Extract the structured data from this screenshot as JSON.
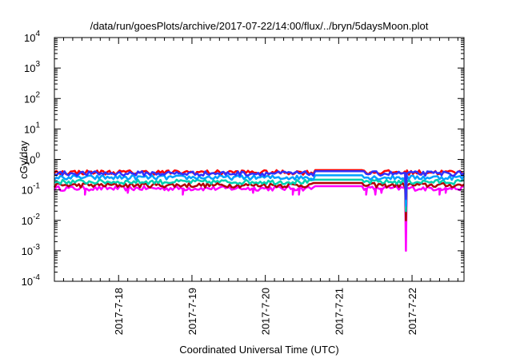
{
  "chart_data": {
    "type": "line",
    "title": "/data/run/goesPlots/archive/2017-07-22/14:00/flux/../bryn/5daysMoon.plot",
    "xlabel": "Coordinated Universal Time (UTC)",
    "ylabel": "cGy/day",
    "yscale": "log",
    "ylim": [
      0.0001,
      10000
    ],
    "ytick_labels": [
      {
        "base": "10",
        "exp": "-4"
      },
      {
        "base": "10",
        "exp": "-3"
      },
      {
        "base": "10",
        "exp": "-2"
      },
      {
        "base": "10",
        "exp": "-1"
      },
      {
        "base": "10",
        "exp": "0"
      },
      {
        "base": "10",
        "exp": "1"
      },
      {
        "base": "10",
        "exp": "2"
      },
      {
        "base": "10",
        "exp": "3"
      },
      {
        "base": "10",
        "exp": "4"
      }
    ],
    "xlim": [
      "2017-07-17 03:00",
      "2017-07-22 17:00"
    ],
    "xtick_labels": [
      "2017-7-18",
      "2017-7-19",
      "2017-7-20",
      "2017-7-21",
      "2017-7-22"
    ],
    "grid": false,
    "legend": "none",
    "series": [
      {
        "color": "#ff00ff",
        "base": 0.11,
        "dips": [
          {
            "x": "2017-07-17 13:00",
            "y": 0.07
          },
          {
            "x": "2017-07-18 03:00",
            "y": 0.08
          },
          {
            "x": "2017-07-18 21:00",
            "y": 0.07
          },
          {
            "x": "2017-07-19 20:00",
            "y": 0.08
          },
          {
            "x": "2017-07-20 09:00",
            "y": 0.07
          },
          {
            "x": "2017-07-20 11:00",
            "y": 0.07
          },
          {
            "x": "2017-07-21 09:00",
            "y": 0.07
          },
          {
            "x": "2017-07-21 12:00",
            "y": 0.07
          },
          {
            "x": "2017-07-21 14:00",
            "y": 0.08
          },
          {
            "x": "2017-07-21 22:00",
            "y": 0.001
          },
          {
            "x": "2017-07-22 09:00",
            "y": 0.07
          },
          {
            "x": "2017-07-22 11:00",
            "y": 0.08
          }
        ]
      },
      {
        "color": "#b00000",
        "base": 0.14,
        "dips": [
          {
            "x": "2017-07-21 22:00",
            "y": 0.01
          }
        ]
      },
      {
        "color": "#00d0b0",
        "base": 0.18,
        "dips": [
          {
            "x": "2017-07-21 22:00",
            "y": 0.02
          }
        ]
      },
      {
        "color": "#00a0ff",
        "base": 0.25,
        "dips": [
          {
            "x": "2017-07-21 22:00",
            "y": 0.03
          }
        ]
      },
      {
        "color": "#ff0000",
        "base": 0.37,
        "dips": [
          {
            "x": "2017-07-21 22:00",
            "y": 0.06
          }
        ]
      },
      {
        "color": "#3030ff",
        "base": 0.34,
        "dips": [
          {
            "x": "2017-07-21 22:00",
            "y": 0.05
          }
        ]
      }
    ]
  }
}
